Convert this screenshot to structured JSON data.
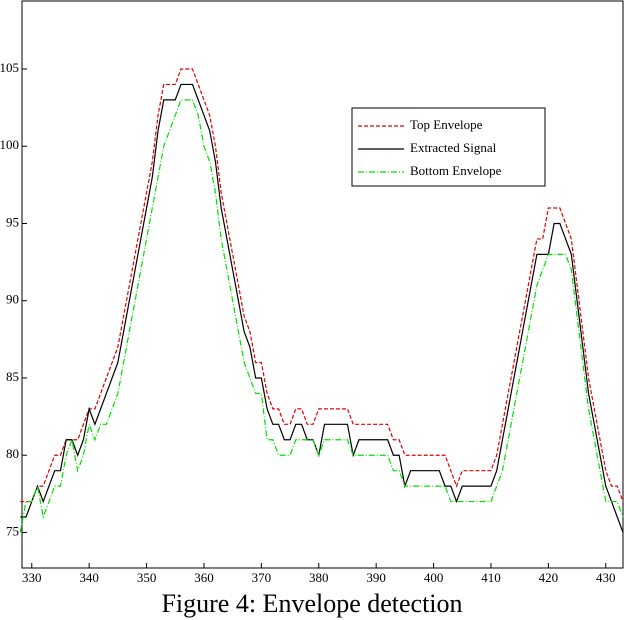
{
  "chart_data": {
    "type": "line",
    "caption": "Figure 4: Envelope detection",
    "x": [
      328,
      329,
      330,
      331,
      332,
      333,
      334,
      335,
      336,
      337,
      338,
      339,
      340,
      341,
      342,
      343,
      344,
      345,
      346,
      347,
      348,
      349,
      350,
      351,
      352,
      353,
      354,
      355,
      356,
      357,
      358,
      359,
      360,
      361,
      362,
      363,
      364,
      365,
      366,
      367,
      368,
      369,
      370,
      371,
      372,
      373,
      374,
      375,
      376,
      377,
      378,
      379,
      380,
      381,
      382,
      383,
      384,
      385,
      386,
      387,
      388,
      389,
      390,
      391,
      392,
      393,
      394,
      395,
      396,
      397,
      398,
      399,
      400,
      401,
      402,
      403,
      404,
      405,
      406,
      407,
      408,
      409,
      410,
      411,
      412,
      413,
      414,
      415,
      416,
      417,
      418,
      419,
      420,
      421,
      422,
      423,
      424,
      425,
      426,
      427,
      428,
      429,
      430,
      431,
      432,
      433
    ],
    "series": [
      {
        "name": "Top Envelope",
        "color": "#e00000",
        "dash": "4,2",
        "values": [
          77,
          77,
          77,
          78,
          78,
          79,
          80,
          80,
          81,
          81,
          81,
          82,
          83,
          83,
          84,
          85,
          86,
          87,
          89,
          91,
          93,
          95,
          97,
          99,
          102,
          104,
          104,
          104,
          105,
          105,
          105,
          104,
          103,
          102,
          100,
          97,
          95,
          93,
          91,
          89,
          88,
          86,
          86,
          84,
          83,
          83,
          82,
          82,
          83,
          83,
          82,
          82,
          83,
          83,
          83,
          83,
          83,
          83,
          82,
          82,
          82,
          82,
          82,
          82,
          82,
          81,
          81,
          80,
          80,
          80,
          80,
          80,
          80,
          80,
          80,
          79,
          78,
          79,
          79,
          79,
          79,
          79,
          79,
          80,
          82,
          84,
          86,
          88,
          90,
          92,
          94,
          94,
          96,
          96,
          96,
          95,
          94,
          91,
          88,
          85,
          83,
          81,
          79,
          78,
          78,
          77
        ]
      },
      {
        "name": "Extracted Signal",
        "color": "#000000",
        "dash": "none",
        "values": [
          76,
          76,
          77,
          78,
          77,
          78,
          79,
          79,
          81,
          81,
          80,
          81,
          83,
          82,
          83,
          84,
          85,
          86,
          88,
          90,
          92,
          94,
          96,
          98,
          101,
          103,
          103,
          103,
          104,
          104,
          104,
          103,
          102,
          101,
          99,
          96,
          94,
          92,
          90,
          88,
          87,
          85,
          85,
          83,
          82,
          82,
          81,
          81,
          82,
          82,
          81,
          81,
          80,
          82,
          82,
          82,
          82,
          82,
          80,
          81,
          81,
          81,
          81,
          81,
          81,
          80,
          80,
          78,
          79,
          79,
          79,
          79,
          79,
          79,
          78,
          78,
          77,
          78,
          78,
          78,
          78,
          78,
          78,
          79,
          81,
          83,
          85,
          87,
          89,
          91,
          93,
          93,
          93,
          95,
          95,
          94,
          93,
          90,
          87,
          84,
          82,
          80,
          78,
          77,
          76,
          75
        ]
      },
      {
        "name": "Bottom Envelope",
        "color": "#00e000",
        "dash": "6,2,1,2",
        "values": [
          75,
          77,
          77,
          78,
          76,
          77,
          78,
          78,
          80,
          81,
          79,
          80,
          82,
          81,
          82,
          82,
          83,
          84,
          86,
          88,
          90,
          92,
          94,
          96,
          98,
          100,
          101,
          102,
          103,
          103,
          103,
          102,
          100,
          99,
          97,
          94,
          92,
          90,
          88,
          86,
          85,
          84,
          84,
          81,
          81,
          80,
          80,
          80,
          81,
          81,
          81,
          81,
          80,
          81,
          81,
          81,
          81,
          81,
          80,
          80,
          80,
          80,
          80,
          80,
          80,
          79,
          79,
          78,
          78,
          78,
          78,
          78,
          78,
          78,
          78,
          77,
          77,
          77,
          77,
          77,
          77,
          77,
          77,
          78,
          79,
          81,
          83,
          85,
          87,
          89,
          91,
          92,
          93,
          93,
          93,
          93,
          92,
          89,
          86,
          83,
          81,
          79,
          77,
          77,
          77,
          76
        ]
      }
    ],
    "xlim": [
      328.3,
      433
    ],
    "ylim": [
      72.7,
      109.4
    ],
    "xticks": [
      330,
      340,
      350,
      360,
      370,
      380,
      390,
      400,
      410,
      420,
      430
    ],
    "yticks": [
      75,
      80,
      85,
      90,
      95,
      100,
      105
    ]
  }
}
